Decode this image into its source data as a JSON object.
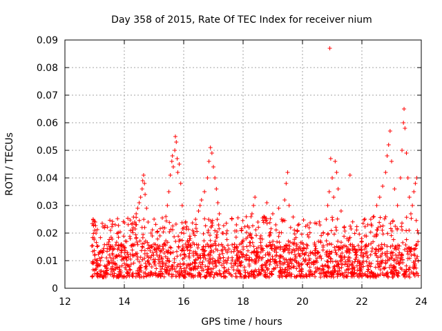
{
  "chart_data": {
    "type": "scatter",
    "title": "Day 358 of 2015, Rate Of TEC Index for receiver nium",
    "xlabel": "GPS time / hours",
    "ylabel": "ROTI / TECUs",
    "xlim": [
      12,
      24
    ],
    "ylim": [
      0,
      0.09
    ],
    "xticks": [
      12,
      14,
      16,
      18,
      20,
      22,
      24
    ],
    "xtick_labels": [
      "12",
      "14",
      "16",
      "18",
      "20",
      "22",
      "24"
    ],
    "yticks": [
      0,
      0.01,
      0.02,
      0.03,
      0.04,
      0.05,
      0.06,
      0.07,
      0.08,
      0.09
    ],
    "ytick_labels": [
      "0",
      "0.01",
      "0.02",
      "0.03",
      "0.04",
      "0.05",
      "0.06",
      "0.07",
      "0.08",
      "0.09"
    ],
    "grid": true,
    "marker": "+",
    "color": "#ff0000",
    "series": [
      {
        "name": "ROTI",
        "points": [
          [
            12.95,
            0.025
          ],
          [
            12.97,
            0.023
          ],
          [
            13.0,
            0.021
          ],
          [
            13.02,
            0.024
          ],
          [
            13.05,
            0.02
          ],
          [
            13.0,
            0.012
          ],
          [
            13.1,
            0.008
          ],
          [
            13.2,
            0.01
          ],
          [
            13.3,
            0.006
          ],
          [
            13.4,
            0.011
          ],
          [
            13.5,
            0.009
          ],
          [
            13.6,
            0.014
          ],
          [
            13.7,
            0.007
          ],
          [
            13.8,
            0.012
          ],
          [
            13.9,
            0.016
          ],
          [
            14.0,
            0.009
          ],
          [
            14.1,
            0.013
          ],
          [
            14.2,
            0.018
          ],
          [
            14.3,
            0.022
          ],
          [
            14.35,
            0.024
          ],
          [
            14.4,
            0.027
          ],
          [
            14.45,
            0.029
          ],
          [
            14.5,
            0.031
          ],
          [
            14.55,
            0.033
          ],
          [
            14.6,
            0.036
          ],
          [
            14.62,
            0.039
          ],
          [
            14.65,
            0.041
          ],
          [
            14.68,
            0.038
          ],
          [
            14.7,
            0.034
          ],
          [
            14.75,
            0.029
          ],
          [
            14.8,
            0.024
          ],
          [
            14.9,
            0.02
          ],
          [
            15.0,
            0.016
          ],
          [
            15.1,
            0.012
          ],
          [
            15.2,
            0.019
          ],
          [
            15.3,
            0.022
          ],
          [
            15.4,
            0.026
          ],
          [
            15.45,
            0.03
          ],
          [
            15.5,
            0.035
          ],
          [
            15.55,
            0.041
          ],
          [
            15.6,
            0.046
          ],
          [
            15.62,
            0.048
          ],
          [
            15.65,
            0.044
          ],
          [
            15.7,
            0.05
          ],
          [
            15.72,
            0.055
          ],
          [
            15.75,
            0.053
          ],
          [
            15.78,
            0.047
          ],
          [
            15.8,
            0.042
          ],
          [
            15.85,
            0.045
          ],
          [
            15.9,
            0.038
          ],
          [
            15.95,
            0.03
          ],
          [
            16.0,
            0.022
          ],
          [
            16.1,
            0.015
          ],
          [
            16.2,
            0.018
          ],
          [
            16.3,
            0.021
          ],
          [
            16.4,
            0.025
          ],
          [
            16.5,
            0.028
          ],
          [
            16.55,
            0.03
          ],
          [
            16.6,
            0.032
          ],
          [
            16.7,
            0.035
          ],
          [
            16.8,
            0.04
          ],
          [
            16.85,
            0.046
          ],
          [
            16.9,
            0.051
          ],
          [
            16.95,
            0.049
          ],
          [
            17.0,
            0.044
          ],
          [
            17.05,
            0.04
          ],
          [
            17.1,
            0.036
          ],
          [
            17.15,
            0.031
          ],
          [
            17.2,
            0.027
          ],
          [
            17.3,
            0.02
          ],
          [
            17.4,
            0.014
          ],
          [
            17.5,
            0.011
          ],
          [
            17.6,
            0.009
          ],
          [
            17.8,
            0.012
          ],
          [
            18.0,
            0.015
          ],
          [
            18.1,
            0.018
          ],
          [
            18.2,
            0.022
          ],
          [
            18.3,
            0.027
          ],
          [
            18.35,
            0.03
          ],
          [
            18.4,
            0.033
          ],
          [
            18.5,
            0.024
          ],
          [
            18.6,
            0.019
          ],
          [
            18.7,
            0.026
          ],
          [
            18.8,
            0.031
          ],
          [
            18.9,
            0.02
          ],
          [
            19.0,
            0.027
          ],
          [
            19.1,
            0.023
          ],
          [
            19.2,
            0.029
          ],
          [
            19.3,
            0.025
          ],
          [
            19.4,
            0.032
          ],
          [
            19.45,
            0.038
          ],
          [
            19.5,
            0.042
          ],
          [
            19.55,
            0.03
          ],
          [
            19.6,
            0.022
          ],
          [
            19.7,
            0.016
          ],
          [
            19.9,
            0.012
          ],
          [
            20.1,
            0.01
          ],
          [
            20.3,
            0.009
          ],
          [
            20.5,
            0.013
          ],
          [
            20.7,
            0.02
          ],
          [
            20.8,
            0.025
          ],
          [
            20.85,
            0.03
          ],
          [
            20.9,
            0.035
          ],
          [
            20.92,
            0.087
          ],
          [
            20.95,
            0.047
          ],
          [
            21.0,
            0.04
          ],
          [
            21.05,
            0.033
          ],
          [
            21.1,
            0.046
          ],
          [
            21.15,
            0.042
          ],
          [
            21.2,
            0.036
          ],
          [
            21.3,
            0.028
          ],
          [
            21.4,
            0.022
          ],
          [
            21.5,
            0.018
          ],
          [
            21.6,
            0.041
          ],
          [
            21.7,
            0.015
          ],
          [
            21.8,
            0.012
          ],
          [
            22.0,
            0.017
          ],
          [
            22.1,
            0.019
          ],
          [
            22.2,
            0.023
          ],
          [
            22.3,
            0.025
          ],
          [
            22.4,
            0.026
          ],
          [
            22.5,
            0.03
          ],
          [
            22.6,
            0.033
          ],
          [
            22.7,
            0.037
          ],
          [
            22.8,
            0.042
          ],
          [
            22.85,
            0.048
          ],
          [
            22.9,
            0.052
          ],
          [
            22.95,
            0.057
          ],
          [
            23.0,
            0.046
          ],
          [
            23.1,
            0.036
          ],
          [
            23.2,
            0.03
          ],
          [
            23.3,
            0.04
          ],
          [
            23.35,
            0.05
          ],
          [
            23.4,
            0.06
          ],
          [
            23.42,
            0.065
          ],
          [
            23.45,
            0.058
          ],
          [
            23.5,
            0.049
          ],
          [
            23.55,
            0.04
          ],
          [
            23.6,
            0.033
          ],
          [
            23.65,
            0.027
          ],
          [
            23.7,
            0.03
          ],
          [
            23.75,
            0.035
          ],
          [
            23.8,
            0.038
          ],
          [
            23.85,
            0.04
          ],
          [
            23.9,
            0.02
          ]
        ],
        "baseline": {
          "x_range": [
            12.9,
            23.9
          ],
          "y_range": [
            0.004,
            0.016
          ]
        }
      }
    ]
  }
}
